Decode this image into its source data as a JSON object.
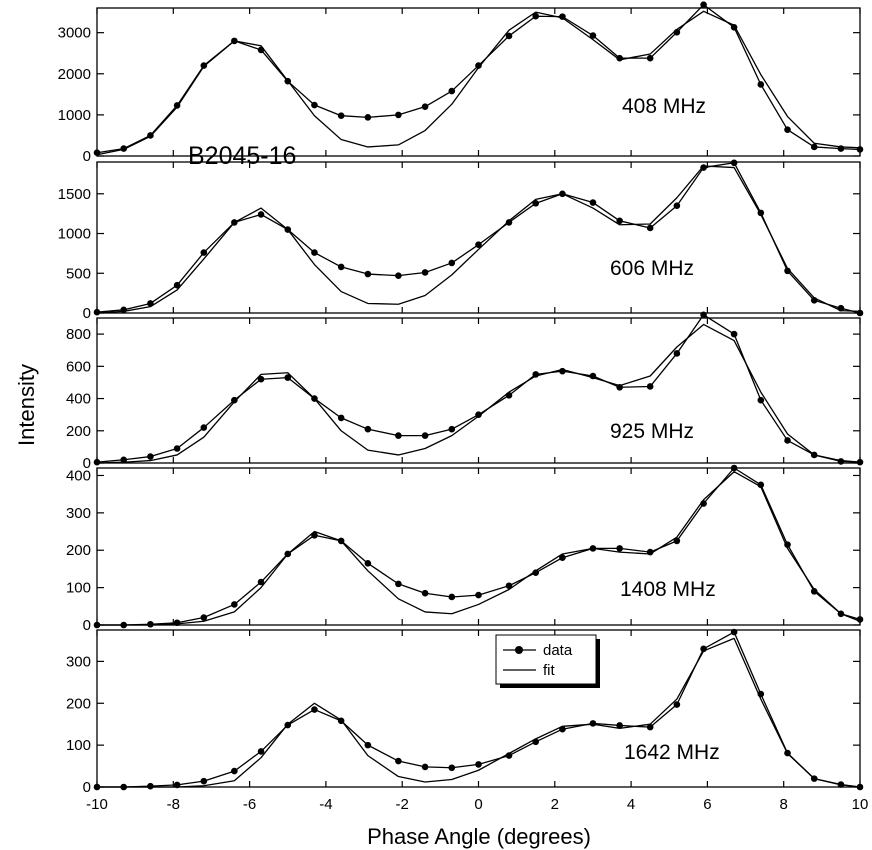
{
  "chart_data": {
    "type": "line",
    "source_label": "B2045-16",
    "xlabel": "Phase Angle (degrees)",
    "ylabel": "Intensity",
    "xlim": [
      -10,
      10
    ],
    "x_ticks": [
      -10,
      -8,
      -6,
      -4,
      -2,
      0,
      2,
      4,
      6,
      8,
      10
    ],
    "x": [
      -10,
      -9.3,
      -8.6,
      -7.9,
      -7.2,
      -6.4,
      -5.7,
      -5.0,
      -4.3,
      -3.6,
      -2.9,
      -2.1,
      -1.4,
      -0.7,
      0,
      0.8,
      1.5,
      2.2,
      3.0,
      3.7,
      4.5,
      5.2,
      5.9,
      6.7,
      7.4,
      8.1,
      8.8,
      9.5,
      10
    ],
    "legend": {
      "position": "center-bottom-panel",
      "entries": [
        "data",
        "fit"
      ]
    },
    "panels": [
      {
        "label": "408 MHz",
        "ylim": [
          0,
          3600
        ],
        "y_ticks": [
          0,
          1000,
          2000,
          3000
        ],
        "series": [
          {
            "name": "data",
            "values": [
              80,
              180,
              500,
              1230,
              2200,
              2800,
              2580,
              1820,
              1240,
              980,
              940,
              1000,
              1200,
              1580,
              2200,
              2920,
              3400,
              3390,
              2930,
              2380,
              2380,
              3010,
              3680,
              3130,
              1740,
              640,
              220,
              180,
              160
            ]
          },
          {
            "name": "fit",
            "values": [
              30,
              160,
              480,
              1190,
              2180,
              2800,
              2680,
              1830,
              980,
              400,
              220,
              270,
              620,
              1260,
              2150,
              3060,
              3500,
              3360,
              2830,
              2340,
              2480,
              3080,
              3520,
              3180,
              1980,
              960,
              310,
              220,
              200
            ]
          }
        ]
      },
      {
        "label": "606 MHz",
        "ylim": [
          0,
          1900
        ],
        "y_ticks": [
          0,
          500,
          1000,
          1500
        ],
        "series": [
          {
            "name": "data",
            "values": [
              10,
              40,
              120,
              350,
              760,
              1140,
              1240,
              1050,
              760,
              580,
              490,
              470,
              510,
              630,
              860,
              1140,
              1380,
              1500,
              1390,
              1160,
              1070,
              1350,
              1830,
              1890,
              1260,
              530,
              160,
              60,
              0
            ]
          },
          {
            "name": "fit",
            "values": [
              0,
              20,
              80,
              290,
              680,
              1140,
              1320,
              1050,
              610,
              270,
              120,
              110,
              220,
              480,
              800,
              1160,
              1430,
              1500,
              1320,
              1110,
              1120,
              1450,
              1850,
              1830,
              1240,
              560,
              190,
              30,
              20
            ]
          }
        ]
      },
      {
        "label": "925 MHz",
        "ylim": [
          0,
          900
        ],
        "y_ticks": [
          0,
          200,
          400,
          600,
          800
        ],
        "series": [
          {
            "name": "data",
            "values": [
              5,
              20,
              40,
              90,
              220,
              390,
              520,
              530,
              400,
              280,
              210,
              170,
              170,
              210,
              300,
              420,
              550,
              570,
              540,
              470,
              475,
              680,
              920,
              800,
              390,
              140,
              50,
              10,
              5
            ]
          },
          {
            "name": "fit",
            "values": [
              0,
              5,
              15,
              50,
              160,
              380,
              550,
              560,
              400,
              200,
              80,
              50,
              90,
              170,
              290,
              440,
              540,
              580,
              530,
              480,
              540,
              720,
              860,
              760,
              440,
              180,
              50,
              15,
              5
            ]
          }
        ]
      },
      {
        "label": "1408 MHz",
        "ylim": [
          0,
          420
        ],
        "y_ticks": [
          0,
          100,
          200,
          300,
          400
        ],
        "series": [
          {
            "name": "data",
            "values": [
              0,
              0,
              2,
              6,
              20,
              55,
              115,
              190,
              240,
              225,
              165,
              110,
              85,
              75,
              80,
              105,
              140,
              180,
              205,
              205,
              195,
              225,
              325,
              420,
              375,
              215,
              90,
              30,
              15
            ]
          },
          {
            "name": "fit",
            "values": [
              0,
              0,
              0,
              3,
              10,
              35,
              100,
              190,
              250,
              225,
              145,
              70,
              35,
              30,
              55,
              95,
              145,
              190,
              205,
              195,
              190,
              235,
              335,
              410,
              370,
              205,
              95,
              30,
              10
            ]
          }
        ]
      },
      {
        "label": "1642 MHz",
        "ylim": [
          0,
          375
        ],
        "y_ticks": [
          0,
          100,
          200,
          300
        ],
        "series": [
          {
            "name": "data",
            "values": [
              0,
              0,
              2,
              5,
              14,
              38,
              85,
              148,
              185,
              158,
              100,
              62,
              48,
              46,
              54,
              75,
              108,
              138,
              152,
              147,
              143,
              197,
              330,
              370,
              222,
              81,
              20,
              6,
              0
            ]
          },
          {
            "name": "fit",
            "values": [
              0,
              0,
              0,
              0,
              3,
              15,
              70,
              150,
              200,
              160,
              75,
              25,
              12,
              18,
              40,
              80,
              115,
              145,
              150,
              140,
              150,
              210,
              325,
              355,
              210,
              80,
              20,
              5,
              0
            ]
          }
        ]
      }
    ]
  }
}
